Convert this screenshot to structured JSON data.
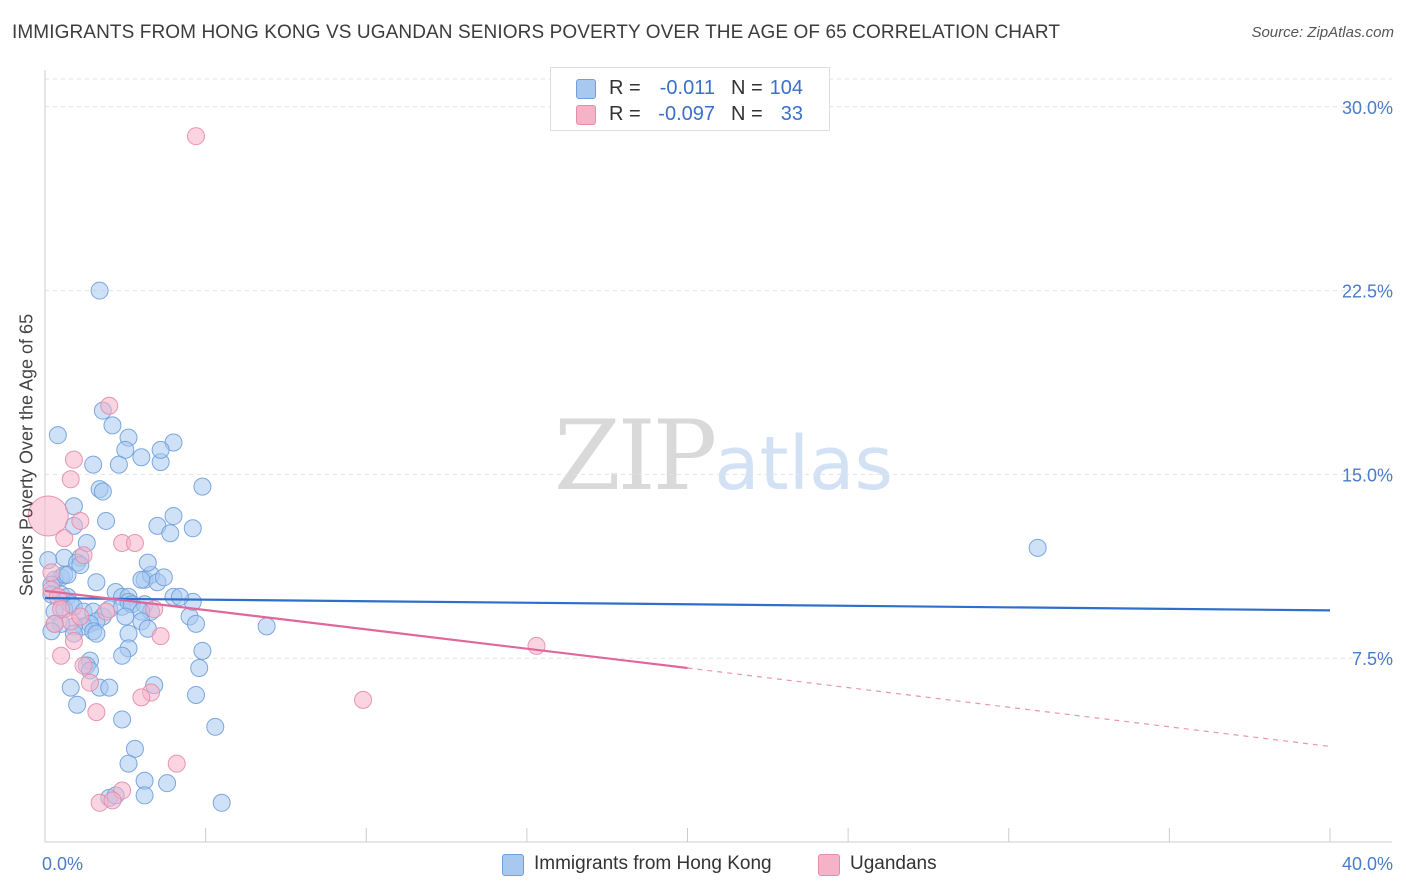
{
  "title": "IMMIGRANTS FROM HONG KONG VS UGANDAN SENIORS POVERTY OVER THE AGE OF 65 CORRELATION CHART",
  "source": "Source: ZipAtlas.com",
  "watermark": {
    "zip": "ZIP",
    "atlas": "atlas"
  },
  "legend_top": {
    "rows": [
      {
        "r_label": "R =",
        "r_value": "-0.011",
        "n_label": "N =",
        "n_value": "104",
        "color": "#a8c8f0"
      },
      {
        "r_label": "R =",
        "r_value": "-0.097",
        "n_label": "N =",
        "n_value": "33",
        "color": "#f5b3c8"
      }
    ]
  },
  "colors": {
    "blue_fill": "#a8c8f0",
    "blue_stroke": "#6f9fdc",
    "blue_line": "#2d6fcb",
    "pink_fill": "#f5b3c8",
    "pink_stroke": "#e88aaa",
    "pink_line": "#e0679a",
    "tick_label": "#4a7cc9",
    "grid": "#e2e2e2"
  },
  "chart_data": {
    "type": "scatter",
    "title": "IMMIGRANTS FROM HONG KONG VS UGANDAN SENIORS POVERTY OVER THE AGE OF 65 CORRELATION CHART",
    "xlabel": "",
    "ylabel": "Seniors Poverty Over the Age of 65",
    "xlim": [
      0,
      40
    ],
    "ylim": [
      0,
      31.5
    ],
    "x_ticks": [
      0,
      40
    ],
    "x_tick_labels": [
      "0.0%",
      "40.0%"
    ],
    "y_ticks": [
      7.5,
      15.0,
      22.5,
      30.0
    ],
    "y_tick_labels": [
      "7.5%",
      "15.0%",
      "22.5%",
      "30.0%"
    ],
    "grid": true,
    "legend": "bottom-center",
    "series": [
      {
        "name": "Immigrants from Hong Kong",
        "r": -0.011,
        "n": 104,
        "trend": {
          "x": [
            0,
            40
          ],
          "y": [
            9.95,
            9.45
          ],
          "dashed_to": null
        },
        "points": [
          [
            1.7,
            22.5
          ],
          [
            1.8,
            17.6
          ],
          [
            0.4,
            16.6
          ],
          [
            2.1,
            17.0
          ],
          [
            2.6,
            16.5
          ],
          [
            2.5,
            16.0
          ],
          [
            3.0,
            15.7
          ],
          [
            3.6,
            15.5
          ],
          [
            4.0,
            16.3
          ],
          [
            2.3,
            15.4
          ],
          [
            1.5,
            15.4
          ],
          [
            1.7,
            14.4
          ],
          [
            1.8,
            14.3
          ],
          [
            4.9,
            14.5
          ],
          [
            1.9,
            13.1
          ],
          [
            0.9,
            13.7
          ],
          [
            4.0,
            13.3
          ],
          [
            3.5,
            12.9
          ],
          [
            4.6,
            12.8
          ],
          [
            0.9,
            12.9
          ],
          [
            1.3,
            12.2
          ],
          [
            1.1,
            11.6
          ],
          [
            0.6,
            11.6
          ],
          [
            0.5,
            10.8
          ],
          [
            0.1,
            11.5
          ],
          [
            0.3,
            10.7
          ],
          [
            0.6,
            10.9
          ],
          [
            0.7,
            10.9
          ],
          [
            1.0,
            11.4
          ],
          [
            1.1,
            11.3
          ],
          [
            1.6,
            10.6
          ],
          [
            2.2,
            10.2
          ],
          [
            2.4,
            10.0
          ],
          [
            2.6,
            10.0
          ],
          [
            3.1,
            10.7
          ],
          [
            3.3,
            10.9
          ],
          [
            3.5,
            10.6
          ],
          [
            3.7,
            10.8
          ],
          [
            3.2,
            11.4
          ],
          [
            4.0,
            10.0
          ],
          [
            0.2,
            10.5
          ],
          [
            0.2,
            10.1
          ],
          [
            0.5,
            10.1
          ],
          [
            0.7,
            10.0
          ],
          [
            0.8,
            9.7
          ],
          [
            0.3,
            9.4
          ],
          [
            0.6,
            9.5
          ],
          [
            0.9,
            9.6
          ],
          [
            1.2,
            9.4
          ],
          [
            1.5,
            9.4
          ],
          [
            1.8,
            9.2
          ],
          [
            2.0,
            9.5
          ],
          [
            2.4,
            9.6
          ],
          [
            2.6,
            9.8
          ],
          [
            2.7,
            9.7
          ],
          [
            3.1,
            9.7
          ],
          [
            3.3,
            9.4
          ],
          [
            3.0,
            9.4
          ],
          [
            2.5,
            9.2
          ],
          [
            1.6,
            9.0
          ],
          [
            1.4,
            8.9
          ],
          [
            1.2,
            8.8
          ],
          [
            0.9,
            8.8
          ],
          [
            0.5,
            8.9
          ],
          [
            0.3,
            8.9
          ],
          [
            0.2,
            8.6
          ],
          [
            0.9,
            8.5
          ],
          [
            1.5,
            8.6
          ],
          [
            1.6,
            8.5
          ],
          [
            2.6,
            8.5
          ],
          [
            3.0,
            9.0
          ],
          [
            3.2,
            8.7
          ],
          [
            4.5,
            9.2
          ],
          [
            4.7,
            8.9
          ],
          [
            4.6,
            9.8
          ],
          [
            4.2,
            10.0
          ],
          [
            6.9,
            8.8
          ],
          [
            2.6,
            7.9
          ],
          [
            2.4,
            7.6
          ],
          [
            4.9,
            7.8
          ],
          [
            1.4,
            7.4
          ],
          [
            1.3,
            7.2
          ],
          [
            1.4,
            7.0
          ],
          [
            4.8,
            7.1
          ],
          [
            0.8,
            6.3
          ],
          [
            1.7,
            6.3
          ],
          [
            2.0,
            6.3
          ],
          [
            3.4,
            6.4
          ],
          [
            4.7,
            6.0
          ],
          [
            1.0,
            5.6
          ],
          [
            2.4,
            5.0
          ],
          [
            5.3,
            4.7
          ],
          [
            2.8,
            3.8
          ],
          [
            2.6,
            3.2
          ],
          [
            3.1,
            2.5
          ],
          [
            3.8,
            2.4
          ],
          [
            2.0,
            1.8
          ],
          [
            2.2,
            1.9
          ],
          [
            3.1,
            1.9
          ],
          [
            5.5,
            1.6
          ],
          [
            3.6,
            16.0
          ],
          [
            3.9,
            12.6
          ],
          [
            3.0,
            10.7
          ],
          [
            30.9,
            12.0
          ]
        ]
      },
      {
        "name": "Ugandans",
        "r": -0.097,
        "n": 33,
        "trend": {
          "x": [
            0,
            20
          ],
          "y": [
            10.25,
            7.1
          ],
          "dashed_to": {
            "x": 40,
            "y": 3.9
          }
        },
        "points": [
          [
            0.1,
            13.3
          ],
          [
            4.7,
            28.8
          ],
          [
            2.0,
            17.8
          ],
          [
            0.9,
            15.6
          ],
          [
            0.8,
            14.8
          ],
          [
            1.1,
            13.1
          ],
          [
            0.6,
            12.4
          ],
          [
            2.4,
            12.2
          ],
          [
            2.8,
            12.2
          ],
          [
            1.2,
            11.7
          ],
          [
            0.2,
            11.0
          ],
          [
            0.2,
            10.3
          ],
          [
            0.4,
            10.0
          ],
          [
            0.5,
            9.5
          ],
          [
            0.8,
            9.0
          ],
          [
            0.3,
            8.9
          ],
          [
            1.1,
            9.2
          ],
          [
            1.9,
            9.4
          ],
          [
            3.4,
            9.5
          ],
          [
            0.9,
            8.2
          ],
          [
            3.6,
            8.4
          ],
          [
            0.5,
            7.6
          ],
          [
            1.2,
            7.2
          ],
          [
            1.4,
            6.5
          ],
          [
            3.3,
            6.1
          ],
          [
            3.0,
            5.9
          ],
          [
            1.6,
            5.3
          ],
          [
            15.3,
            8.0
          ],
          [
            9.9,
            5.8
          ],
          [
            4.1,
            3.2
          ],
          [
            2.4,
            2.1
          ],
          [
            1.7,
            1.6
          ],
          [
            2.1,
            1.7
          ]
        ]
      }
    ]
  },
  "legend_bottom": {
    "items": [
      {
        "label": "Immigrants from Hong Kong",
        "color": "#a8c8f0"
      },
      {
        "label": "Ugandans",
        "color": "#f5b3c8"
      }
    ]
  }
}
